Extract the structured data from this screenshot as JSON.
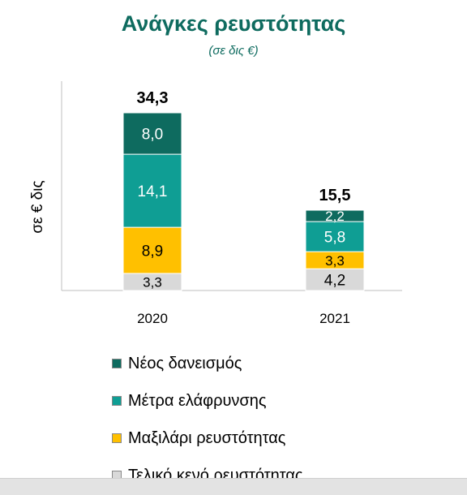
{
  "chart_data": {
    "type": "bar",
    "stacked": true,
    "title": "Ανάγκες ρευστότητας",
    "subtitle": "(σε δις €)",
    "ylabel": "σε € δις",
    "categories": [
      "2020",
      "2021"
    ],
    "totals": [
      "34,3",
      "15,5"
    ],
    "ylim": [
      0,
      34.3
    ],
    "grid": false,
    "legend_position": "bottom",
    "series": [
      {
        "name": "Τελικό κενό ρευστότητας",
        "color": "#d9d9d9",
        "values": [
          3.3,
          4.2
        ],
        "labels": [
          "3,3",
          "4,2"
        ],
        "label_color": "#000000"
      },
      {
        "name": "Μαξιλάρι ρευστότητας",
        "color": "#ffc000",
        "values": [
          8.9,
          3.3
        ],
        "labels": [
          "8,9",
          "3,3"
        ],
        "label_color": "#000000"
      },
      {
        "name": "Μέτρα ελάφρυνσης",
        "color": "#0f9e94",
        "values": [
          14.1,
          5.8
        ],
        "labels": [
          "14,1",
          "5,8"
        ],
        "label_color": "#ffffff"
      },
      {
        "name": "Νέος δανεισμός",
        "color": "#0e6b5f",
        "values": [
          8.0,
          2.2
        ],
        "labels": [
          "8,0",
          "2,2"
        ],
        "label_color": "#ffffff"
      }
    ]
  }
}
